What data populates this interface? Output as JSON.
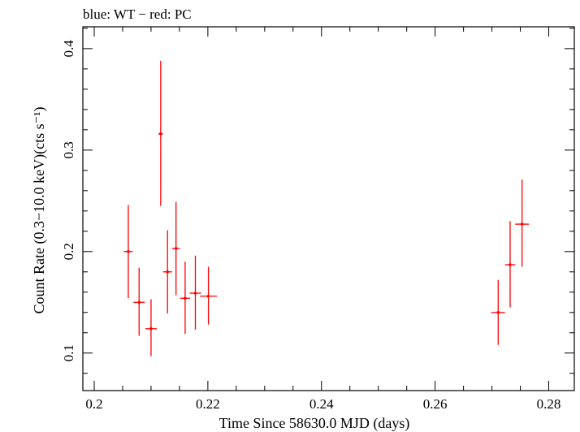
{
  "chart_data": {
    "type": "scatter",
    "title": "blue: WT − red: PC",
    "xlabel": "Time Since 58630.0 MJD (days)",
    "ylabel": "Count Rate (0.3−10.0 keV)(cts s⁻¹)",
    "xlim": [
      0.198,
      0.2845
    ],
    "ylim": [
      0.063,
      0.4215
    ],
    "xticks": [
      0.2,
      0.22,
      0.24,
      0.26,
      0.28
    ],
    "xtick_labels": [
      "0.2",
      "0.22",
      "0.24",
      "0.26",
      "0.28"
    ],
    "yticks": [
      0.1,
      0.2,
      0.3,
      0.4
    ],
    "ytick_labels": [
      "0.1",
      "0.2",
      "0.3",
      "0.4"
    ],
    "grid": false,
    "colors": {
      "series": "#ff0000",
      "axes": "#000000",
      "background": "#ffffff"
    },
    "series": [
      {
        "mode": "PC",
        "color": "#ff0000",
        "points": [
          {
            "x": 0.206,
            "xerr": 0.0008,
            "y": 0.2,
            "ylo": 0.154,
            "yhi": 0.246
          },
          {
            "x": 0.2079,
            "xerr": 0.001,
            "y": 0.15,
            "ylo": 0.117,
            "yhi": 0.184
          },
          {
            "x": 0.21,
            "xerr": 0.001,
            "y": 0.124,
            "ylo": 0.097,
            "yhi": 0.153
          },
          {
            "x": 0.2117,
            "xerr": 0.0004,
            "y": 0.316,
            "ylo": 0.245,
            "yhi": 0.388
          },
          {
            "x": 0.2129,
            "xerr": 0.0008,
            "y": 0.18,
            "ylo": 0.139,
            "yhi": 0.221
          },
          {
            "x": 0.2144,
            "xerr": 0.0007,
            "y": 0.203,
            "ylo": 0.157,
            "yhi": 0.249
          },
          {
            "x": 0.216,
            "xerr": 0.0009,
            "y": 0.154,
            "ylo": 0.119,
            "yhi": 0.19
          },
          {
            "x": 0.2178,
            "xerr": 0.001,
            "y": 0.159,
            "ylo": 0.123,
            "yhi": 0.196
          },
          {
            "x": 0.2201,
            "xerr": 0.0015,
            "y": 0.156,
            "ylo": 0.128,
            "yhi": 0.185
          },
          {
            "x": 0.2711,
            "xerr": 0.0012,
            "y": 0.14,
            "ylo": 0.108,
            "yhi": 0.172
          },
          {
            "x": 0.2732,
            "xerr": 0.0009,
            "y": 0.187,
            "ylo": 0.145,
            "yhi": 0.23
          },
          {
            "x": 0.2753,
            "xerr": 0.0012,
            "y": 0.227,
            "ylo": 0.185,
            "yhi": 0.271
          }
        ]
      }
    ]
  }
}
